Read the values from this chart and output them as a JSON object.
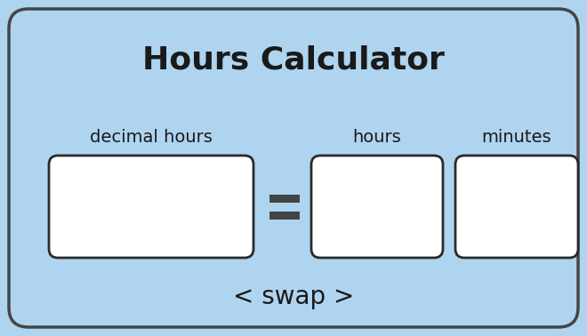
{
  "title": "Hours Calculator",
  "title_fontsize": 26,
  "title_fontweight": "bold",
  "label_decimal": "decimal hours",
  "label_hours": "hours",
  "label_minutes": "minutes",
  "swap_text": "< swap >",
  "swap_fontsize": 20,
  "label_fontsize": 14,
  "background_color": "#aed4f0",
  "box_color": "#ffffff",
  "box_edge_color": "#2a2a2a",
  "text_color": "#1a1a1a",
  "outer_border_color": "#444444",
  "fig_width": 6.6,
  "fig_height": 3.78,
  "dpi": 100
}
